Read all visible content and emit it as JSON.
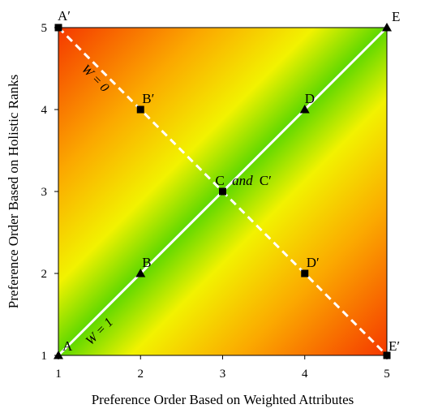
{
  "chart_data": {
    "type": "scatter",
    "xlabel": "Preference Order Based on Weighted Attributes",
    "ylabel": "Preference Order Based on Holistic Ranks",
    "xlim": [
      1,
      5
    ],
    "ylim": [
      1,
      5
    ],
    "x_ticks": [
      "1",
      "2",
      "3",
      "4",
      "5"
    ],
    "y_ticks": [
      "1",
      "2",
      "3",
      "4",
      "5"
    ],
    "grid": false,
    "background": "gradient: green along diagonal y=x, through yellow and orange, to red at the top-left and bottom-right corners",
    "colors": {
      "diagonal": "#5ed800",
      "yellow": "#f2f200",
      "orange": "#fba900",
      "corner": "#f53800",
      "line": "#ffffff",
      "marker": "#000000"
    },
    "series": [
      {
        "marker": "triangle",
        "line": "solid",
        "line_label": "W = 1",
        "points": [
          {
            "x": 1,
            "y": 1,
            "label": "A"
          },
          {
            "x": 2,
            "y": 2,
            "label": "B"
          },
          {
            "x": 3,
            "y": 3,
            "label": ""
          },
          {
            "x": 4,
            "y": 4,
            "label": "D"
          },
          {
            "x": 5,
            "y": 5,
            "label": "E"
          }
        ]
      },
      {
        "marker": "square",
        "line": "dashed",
        "line_label": "W = 0",
        "points": [
          {
            "x": 1,
            "y": 5,
            "label": "A′"
          },
          {
            "x": 2,
            "y": 4,
            "label": "B′"
          },
          {
            "x": 3,
            "y": 3,
            "label": ""
          },
          {
            "x": 4,
            "y": 2,
            "label": "D′"
          },
          {
            "x": 5,
            "y": 1,
            "label": "E′"
          }
        ]
      }
    ],
    "center_label": {
      "x": 3,
      "y": 3,
      "pre": "C",
      "mid": "and",
      "post": "C′"
    }
  }
}
